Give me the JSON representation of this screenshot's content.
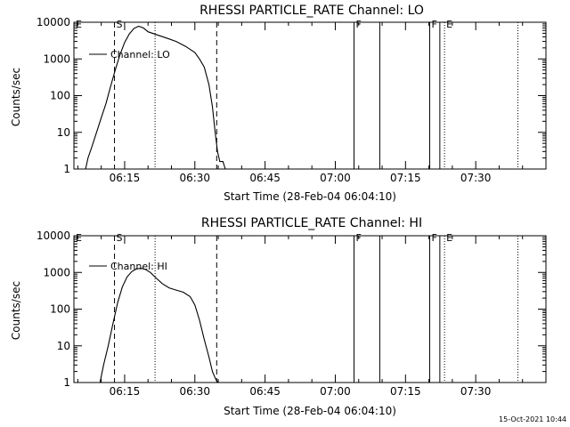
{
  "chart_data": [
    {
      "type": "line",
      "title": "RHESSI PARTICLE_RATE Channel: LO",
      "xlabel": "Start Time (28-Feb-04 06:04:10)",
      "ylabel": "Counts/sec",
      "yscale": "log",
      "xlim": [
        "06:04:10",
        "07:45:00"
      ],
      "ylim": [
        1,
        10000
      ],
      "xticks": [
        "06:15",
        "06:30",
        "06:45",
        "07:00",
        "07:15",
        "07:30"
      ],
      "yticks": [
        "1",
        "10",
        "100",
        "1000",
        "10000"
      ],
      "legend": "Channel: LO",
      "legend_position": "top-left",
      "grid": false,
      "series": [
        {
          "name": "Channel: LO",
          "x": [
            "06:06:40",
            "06:07:10",
            "06:08:00",
            "06:09:00",
            "06:10:00",
            "06:11:00",
            "06:12:00",
            "06:13:00",
            "06:14:00",
            "06:15:00",
            "06:16:00",
            "06:17:00",
            "06:18:00",
            "06:19:00",
            "06:20:00",
            "06:22:00",
            "06:24:00",
            "06:26:00",
            "06:28:00",
            "06:30:00",
            "06:31:00",
            "06:32:00",
            "06:33:00",
            "06:33:45",
            "06:34:20",
            "06:34:50",
            "06:35:20",
            "06:36:00",
            "06:36:30"
          ],
          "y": [
            1,
            2,
            4,
            10,
            25,
            60,
            180,
            500,
            1300,
            2800,
            4800,
            6800,
            7800,
            7000,
            5500,
            4500,
            3700,
            3000,
            2200,
            1500,
            1000,
            600,
            200,
            50,
            10,
            3,
            1.6,
            1.6,
            1
          ]
        }
      ],
      "markers": [
        {
          "label": "E",
          "x": "06:04:10",
          "style": "solid"
        },
        {
          "label": "S",
          "x": "06:12:50",
          "style": "dashed"
        },
        {
          "label": "",
          "x": "06:21:30",
          "style": "dotted"
        },
        {
          "label": "",
          "x": "06:34:40",
          "style": "dashed"
        },
        {
          "label": "F",
          "x": "07:04:00",
          "style": "solid"
        },
        {
          "label": "",
          "x": "07:09:30",
          "style": "solid"
        },
        {
          "label": "F",
          "x": "07:20:10",
          "style": "solid"
        },
        {
          "label": "",
          "x": "07:22:20",
          "style": "solid"
        },
        {
          "label": "E",
          "x": "07:23:20",
          "style": "dotted"
        },
        {
          "label": "",
          "x": "07:39:00",
          "style": "dotted"
        }
      ]
    },
    {
      "type": "line",
      "title": "RHESSI PARTICLE_RATE Channel: HI",
      "xlabel": "Start Time (28-Feb-04 06:04:10)",
      "ylabel": "Counts/sec",
      "yscale": "log",
      "xlim": [
        "06:04:10",
        "07:45:00"
      ],
      "ylim": [
        1,
        10000
      ],
      "xticks": [
        "06:15",
        "06:30",
        "06:45",
        "07:00",
        "07:15",
        "07:30"
      ],
      "yticks": [
        "1",
        "10",
        "100",
        "1000",
        "10000"
      ],
      "legend": "Channel: HI",
      "legend_position": "top-left",
      "grid": false,
      "series": [
        {
          "name": "Channel: HI",
          "x": [
            "06:09:45",
            "06:10:30",
            "06:11:30",
            "06:12:30",
            "06:13:30",
            "06:14:30",
            "06:15:30",
            "06:16:30",
            "06:17:30",
            "06:18:30",
            "06:19:30",
            "06:20:30",
            "06:21:30",
            "06:23:00",
            "06:24:30",
            "06:26:00",
            "06:27:30",
            "06:29:00",
            "06:30:00",
            "06:31:00",
            "06:32:00",
            "06:33:00",
            "06:33:45",
            "06:34:30",
            "06:35:00"
          ],
          "y": [
            1,
            3,
            10,
            40,
            150,
            400,
            750,
            1050,
            1250,
            1300,
            1200,
            1000,
            750,
            500,
            380,
            330,
            290,
            220,
            130,
            50,
            15,
            5,
            2,
            1.2,
            1
          ]
        }
      ],
      "markers": [
        {
          "label": "E",
          "x": "06:04:10",
          "style": "solid"
        },
        {
          "label": "S",
          "x": "06:12:50",
          "style": "dashed"
        },
        {
          "label": "",
          "x": "06:21:30",
          "style": "dotted"
        },
        {
          "label": "",
          "x": "06:34:40",
          "style": "dashed"
        },
        {
          "label": "F",
          "x": "07:04:00",
          "style": "solid"
        },
        {
          "label": "",
          "x": "07:09:30",
          "style": "solid"
        },
        {
          "label": "F",
          "x": "07:20:10",
          "style": "solid"
        },
        {
          "label": "",
          "x": "07:22:20",
          "style": "solid"
        },
        {
          "label": "E",
          "x": "07:23:20",
          "style": "dotted"
        },
        {
          "label": "",
          "x": "07:39:00",
          "style": "dotted"
        }
      ]
    }
  ],
  "footer": {
    "timestamp": "15-Oct-2021 10:44"
  }
}
